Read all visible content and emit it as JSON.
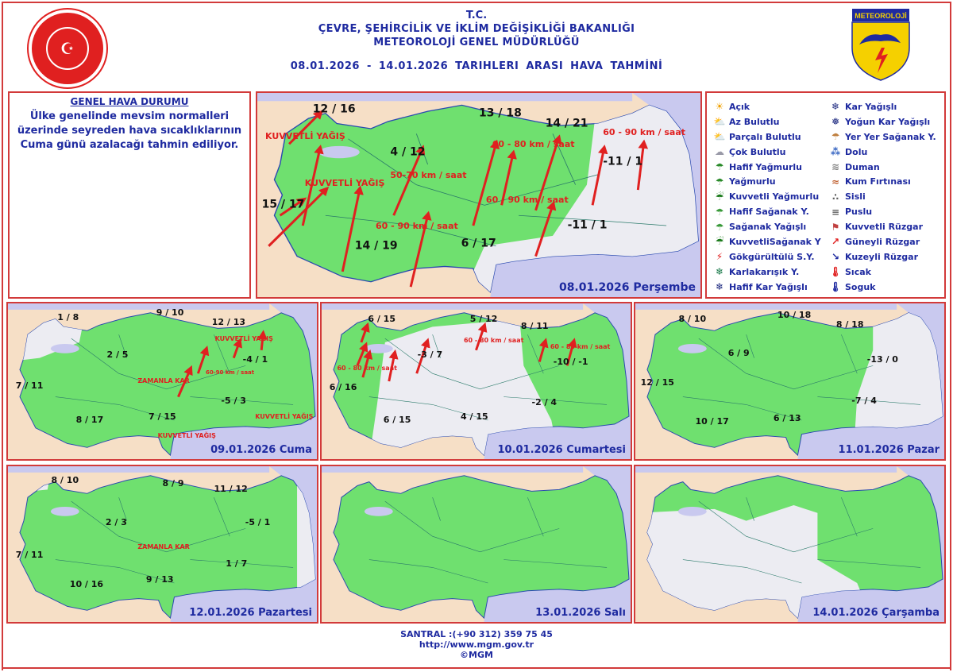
{
  "header": {
    "line1": "T.C.",
    "line2": "ÇEVRE, ŞEHİRCİLİK VE İKLİM DEĞİŞİKLİĞİ BAKANLIĞI",
    "line3": "METEOROLOJİ  GENEL  MÜDÜRLÜĞÜ",
    "period": "08.01.2026  -  14.01.2026   TARIHLERI  ARASI  HAVA  TAHMİNİ"
  },
  "logos": {
    "right_text": "METEOROLOJİ"
  },
  "general": {
    "title": "GENEL HAVA DURUMU",
    "body": "Ülke genelinde mevsim normalleri üzerinde seyreden hava sıcaklıklarının Cuma günü azalacağı tahmin ediliyor."
  },
  "colors": {
    "sea": "#c9c9ef",
    "land_outside": "#f6dfc6",
    "rain_area": "#6fe06f",
    "dry_area": "#ececf2",
    "border": "#d23a3a",
    "text": "#1e2aa0",
    "wind_arrow": "#e02020"
  },
  "maps": [
    {
      "date": "08.01.2026 Perşembe",
      "temps": [
        "12 / 16",
        "13 / 18",
        "14 / 21",
        "4 / 12",
        "-11 / 1",
        "15 / 17",
        "-11 / 1",
        "14 / 19",
        "6 / 17"
      ],
      "notes": [
        "KUVVETLİ YAĞIŞ",
        "KUVVETLİ YAĞIŞ",
        "50-70 km / saat",
        "60 - 80 km / saat",
        "60 - 90 km / saat",
        "60 - 90 km / saat",
        "60 - 90 km / saat"
      ]
    },
    {
      "date": "09.01.2026 Cuma",
      "temps": [
        "1 / 8",
        "9 / 10",
        "12 / 13",
        "2 / 5",
        "-4 / 1",
        "7 / 11",
        "-5 / 3",
        "8 / 17",
        "7 / 15"
      ],
      "notes": [
        "ZAMANLA KAR",
        "KUVVETLİ YAĞIŞ",
        "KUVVETLİ YAĞIŞ",
        "KUVVETLİ YAĞIŞ",
        "60-90 km / saat"
      ]
    },
    {
      "date": "10.01.2026 Cumartesi",
      "temps": [
        "6 / 15",
        "5 / 12",
        "8 / 11",
        "-3 / 7",
        "-10 / -1",
        "6 / 16",
        "-2 / 4",
        "6 / 15",
        "4 / 15"
      ],
      "notes": [
        "60 - 80 km / saat",
        "60 - 80 km / saat",
        "60 - 80 km / saat"
      ]
    },
    {
      "date": "11.01.2026 Pazar",
      "temps": [
        "8 / 10",
        "10 / 18",
        "8 / 18",
        "6 / 9",
        "-13 / 0",
        "12 / 15",
        "-7 / 4",
        "10 / 17",
        "6 / 13"
      ],
      "notes": []
    },
    {
      "date": "12.01.2026 Pazartesi",
      "temps": [
        "8 / 10",
        "8 / 9",
        "11 / 12",
        "2 / 3",
        "-5 / 1",
        "7 / 11",
        "1 / 7",
        "10 / 16",
        "9 / 13"
      ],
      "notes": [
        "ZAMANLA KAR"
      ]
    },
    {
      "date": "13.01.2026 Salı",
      "temps": [],
      "notes": []
    },
    {
      "date": "14.01.2026 Çarşamba",
      "temps": [],
      "notes": []
    }
  ],
  "legend": [
    {
      "label": "Açık",
      "icon": "sun-icon",
      "glyph": "☀",
      "color": "#f0a000"
    },
    {
      "label": "Az Bulutlu",
      "icon": "sun-small-cloud-icon",
      "glyph": "⛅",
      "color": "#e0a020"
    },
    {
      "label": "Parçalı Bulutlu",
      "icon": "partly-cloudy-icon",
      "glyph": "⛅",
      "color": "#c09060"
    },
    {
      "label": "Çok Bulutlu",
      "icon": "cloud-icon",
      "glyph": "☁",
      "color": "#9a9aa8"
    },
    {
      "label": "Hafif Yağmurlu",
      "icon": "light-rain-icon",
      "glyph": "☂",
      "color": "#2a8a2a"
    },
    {
      "label": "Yağmurlu",
      "icon": "rain-icon",
      "glyph": "☂",
      "color": "#2a8a2a"
    },
    {
      "label": "Kuvvetli Yağmurlu",
      "icon": "heavy-rain-icon",
      "glyph": "☔",
      "color": "#1a7a1a"
    },
    {
      "label": "Hafif Sağanak Y.",
      "icon": "light-shower-icon",
      "glyph": "☂",
      "color": "#3a9a3a"
    },
    {
      "label": "Sağanak Yağışlı",
      "icon": "shower-icon",
      "glyph": "☂",
      "color": "#3a9a3a"
    },
    {
      "label": "KuvvetliSağanak Y",
      "icon": "heavy-shower-icon",
      "glyph": "☔",
      "color": "#1a7a1a"
    },
    {
      "label": "Gökgürültülü S.Y.",
      "icon": "thunderstorm-icon",
      "glyph": "⚡",
      "color": "#e02020"
    },
    {
      "label": "Karlakarışık Y.",
      "icon": "sleet-icon",
      "glyph": "❄",
      "color": "#1a7a4a"
    },
    {
      "label": "Hafif Kar Yağışlı",
      "icon": "light-snow-icon",
      "glyph": "❄",
      "color": "#1e2a80"
    },
    {
      "label": "Kar Yağışlı",
      "icon": "snow-icon",
      "glyph": "❄",
      "color": "#1e2a80"
    },
    {
      "label": "Yoğun Kar Yağışlı",
      "icon": "heavy-snow-icon",
      "glyph": "❅",
      "color": "#1e2a80"
    },
    {
      "label": "Yer Yer Sağanak Y.",
      "icon": "scattered-shower-icon",
      "glyph": "☂",
      "color": "#c08040"
    },
    {
      "label": "Dolu",
      "icon": "hail-icon",
      "glyph": "⁂",
      "color": "#3060c0"
    },
    {
      "label": "Duman",
      "icon": "smoke-icon",
      "glyph": "≋",
      "color": "#808080"
    },
    {
      "label": "Kum Fırtınası",
      "icon": "sandstorm-icon",
      "glyph": "≈",
      "color": "#c06030"
    },
    {
      "label": "Sisli",
      "icon": "fog-icon",
      "glyph": "∴",
      "color": "#606060"
    },
    {
      "label": "Puslu",
      "icon": "haze-icon",
      "glyph": "≡",
      "color": "#606060"
    },
    {
      "label": "Kuvvetli Rüzgar",
      "icon": "strong-wind-icon",
      "glyph": "⚑",
      "color": "#c04040"
    },
    {
      "label": "Güneyli Rüzgar",
      "icon": "south-wind-arrow-icon",
      "glyph": "↗",
      "color": "#e02020"
    },
    {
      "label": "Kuzeyli Rüzgar",
      "icon": "north-wind-arrow-icon",
      "glyph": "↘",
      "color": "#1e2aa0"
    },
    {
      "label": "Sıcak",
      "icon": "hot-thermometer-icon",
      "glyph": "🌡",
      "color": "#e02020"
    },
    {
      "label": "Soguk",
      "icon": "cold-thermometer-icon",
      "glyph": "🌡",
      "color": "#1e2aa0"
    }
  ],
  "footer": {
    "phone": "SANTRAL :(+90 312) 359 75 45",
    "url": "http://www.mgm.gov.tr",
    "copyright": "©MGM"
  }
}
